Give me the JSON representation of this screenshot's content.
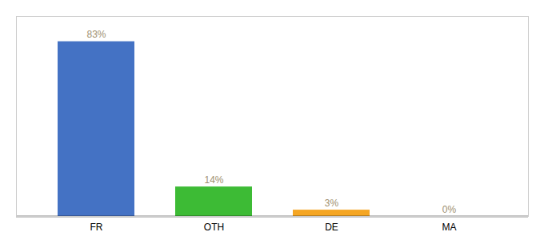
{
  "chart_data": {
    "type": "bar",
    "categories": [
      "FR",
      "OTH",
      "DE",
      "MA"
    ],
    "values": [
      83,
      14,
      3,
      0
    ],
    "value_labels": [
      "83%",
      "14%",
      "3%",
      "0%"
    ],
    "colors": [
      "#4472c4",
      "#3dbb35",
      "#f5a623",
      "#f5a623"
    ],
    "ylim": [
      0,
      95
    ],
    "data_labels": true,
    "tick_labels": "x"
  }
}
